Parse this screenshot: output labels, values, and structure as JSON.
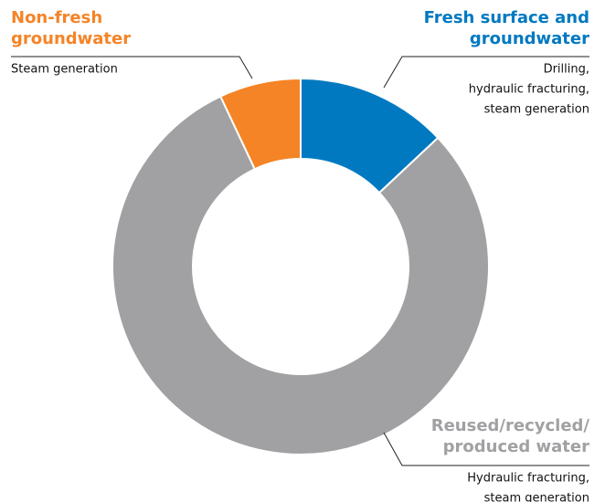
{
  "chart_data": {
    "type": "donut",
    "series": [
      {
        "name": [
          "Fresh surface and",
          "groundwater"
        ],
        "description": [
          "Drilling,",
          "hydraulic fracturing,",
          "steam generation"
        ],
        "color": "#0079c1",
        "value": 13
      },
      {
        "name": [
          "Reused/recycled/",
          "produced water"
        ],
        "description": [
          "Hydraulic fracturing,",
          "steam generation"
        ],
        "color": "#a1a1a4",
        "value": 80
      },
      {
        "name": [
          "Non-fresh",
          "groundwater"
        ],
        "description": [
          "Steam generation"
        ],
        "color": "#f58426",
        "value": 7
      }
    ]
  }
}
